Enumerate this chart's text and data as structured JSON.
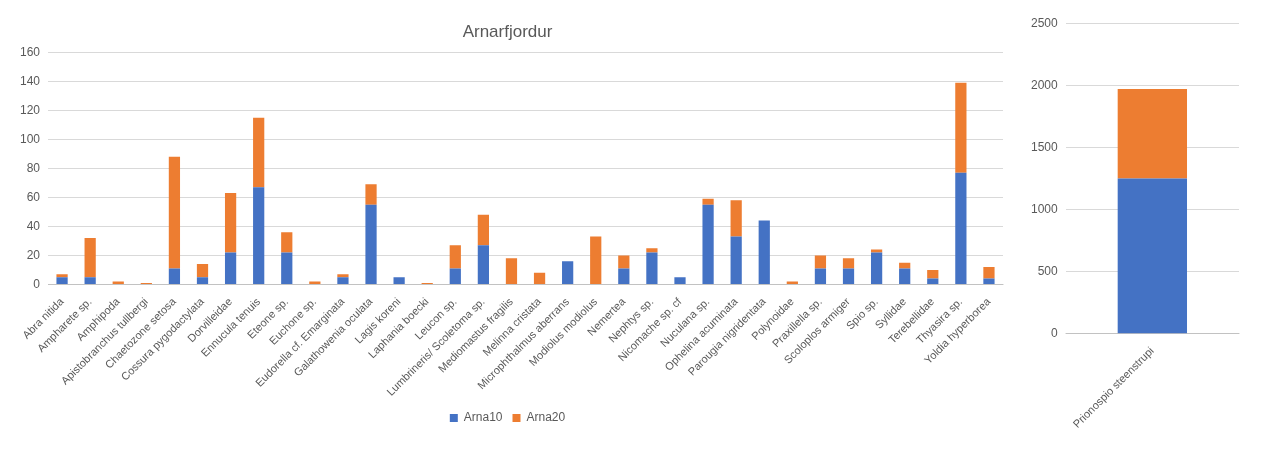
{
  "chart_data": [
    {
      "type": "bar",
      "title": "Arnarfjordur",
      "stacked": true,
      "grid": "y",
      "legend": "bottom",
      "categories": [
        "Abra nitida",
        "Ampharete sp.",
        "Amphipoda",
        "Apistobranchus tullbergi",
        "Chaetozone setosa",
        "Cossura pygodactylata",
        "Dorvilleidae",
        "Ennucula tenuis",
        "Eteone sp.",
        "Euchone sp.",
        "Eudorella cf. Emarginata",
        "Galathowenia oculata",
        "Lagis koreni",
        "Laphania boecki",
        "Leucon sp.",
        "Lumbrineris/ Scoletoma sp.",
        "Mediomastus fragilis",
        "Melinna cristata",
        "Microphthalmus aberrans",
        "Modiolus modiolus",
        "Nemertea",
        "Nephtys sp.",
        "Nicomache sp. cf",
        "Nuculana sp.",
        "Ophelina acuminata",
        "Parougia nigridentata",
        "Polynoidae",
        "Praxillella sp.",
        "Scoloplos armiger",
        "Spio sp.",
        "Syllidae",
        "Terebellidae",
        "Thyasira sp.",
        "Yoldia hyperborea"
      ],
      "series": [
        {
          "name": "Arna10",
          "color": "#4472c4",
          "values": [
            5,
            5,
            0,
            0,
            11,
            5,
            22,
            67,
            22,
            0,
            5,
            55,
            5,
            0,
            11,
            27,
            0,
            0,
            16,
            0,
            11,
            22,
            5,
            55,
            33,
            44,
            0,
            11,
            11,
            22,
            11,
            4,
            77,
            4
          ]
        },
        {
          "name": "Arna20",
          "color": "#ed7d31",
          "values": [
            2,
            27,
            2,
            1,
            77,
            9,
            41,
            48,
            14,
            2,
            2,
            14,
            0,
            1,
            16,
            21,
            18,
            8,
            0,
            33,
            9,
            3,
            0,
            4,
            25,
            0,
            2,
            9,
            7,
            2,
            4,
            6,
            62,
            8
          ]
        }
      ],
      "ylim": [
        0,
        160
      ],
      "yticks": [
        0,
        20,
        40,
        60,
        80,
        100,
        120,
        140,
        160
      ]
    },
    {
      "type": "bar",
      "stacked": true,
      "grid": "y",
      "categories": [
        "Prionospio steenstrupi"
      ],
      "series": [
        {
          "color": "#4472c4",
          "values": [
            1250
          ]
        },
        {
          "color": "#ed7d31",
          "values": [
            720
          ]
        }
      ],
      "ylim": [
        0,
        2500
      ],
      "yticks": [
        0,
        500,
        1000,
        1500,
        2000,
        2500
      ]
    }
  ]
}
